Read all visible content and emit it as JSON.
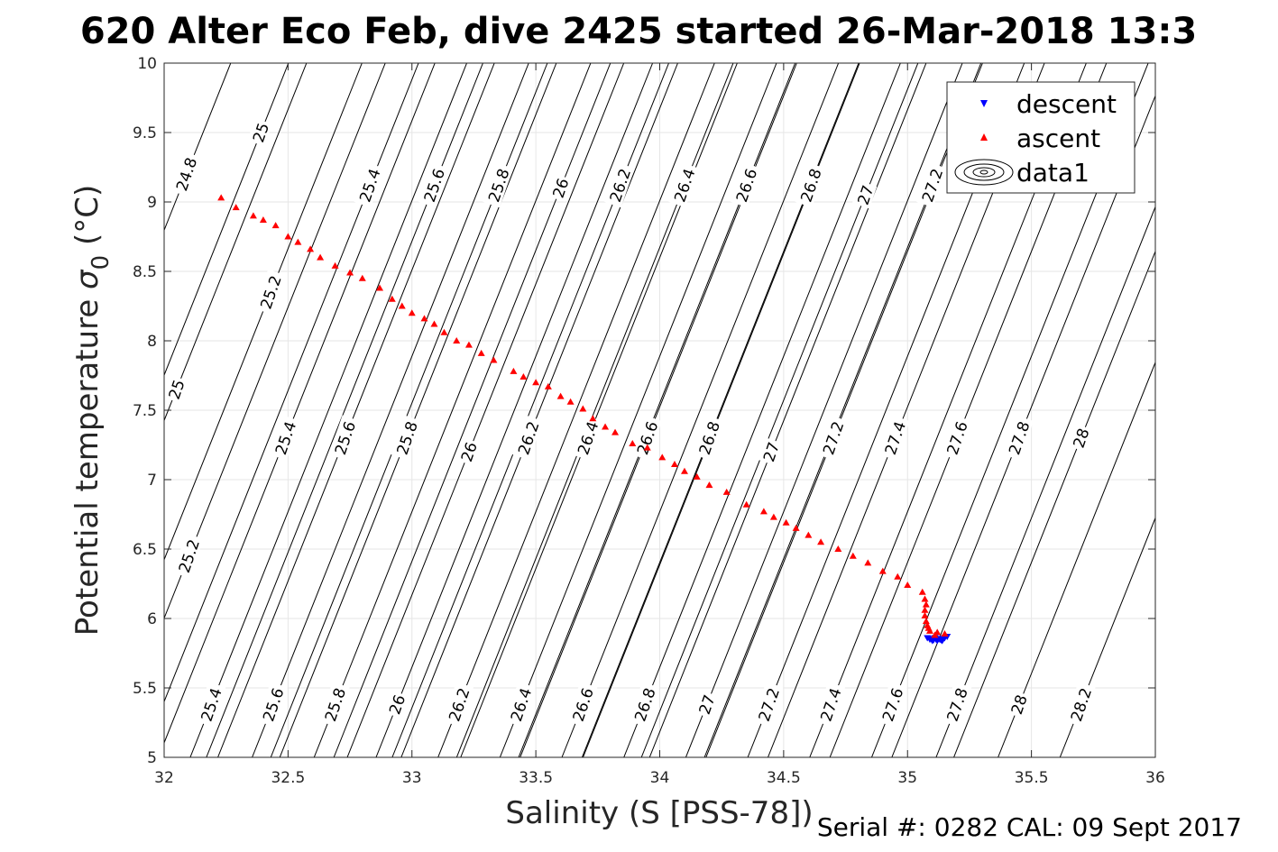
{
  "chart_data": {
    "type": "scatter",
    "title": "620 Alter Eco Feb, dive 2425 started 26-Mar-2018 13:3",
    "xlabel": "Salinity (S [PSS-78])",
    "ylabel_prefix": "Potential temperature ",
    "ylabel_sigma": "σ",
    "ylabel_sub": "0",
    "ylabel_suffix": " (°C)",
    "xlim": [
      32,
      36
    ],
    "ylim": [
      5,
      10
    ],
    "x_ticks": [
      32,
      32.5,
      33,
      33.5,
      34,
      34.5,
      35,
      35.5,
      36
    ],
    "y_ticks": [
      5,
      5.5,
      6,
      6.5,
      7,
      7.5,
      8,
      8.5,
      9,
      9.5,
      10
    ],
    "x_tick_labels": [
      "32",
      "32.5",
      "33",
      "33.5",
      "34",
      "34.5",
      "35",
      "35.5",
      "36"
    ],
    "y_tick_labels": [
      "5",
      "5.5",
      "6",
      "6.5",
      "7",
      "7.5",
      "8",
      "8.5",
      "9",
      "9.5",
      "10"
    ],
    "grid": true,
    "legend_position": "top-right",
    "legend": [
      {
        "label": "descent",
        "color": "#0000ff",
        "marker": "triangle-down"
      },
      {
        "label": "ascent",
        "color": "#ff0000",
        "marker": "triangle-up"
      },
      {
        "label": "data1",
        "color": "#000000",
        "marker": "contour"
      }
    ],
    "footer": "Serial #: 0282  CAL: 09 Sept 2017",
    "series": [
      {
        "name": "descent",
        "color": "#0000ff",
        "marker": "triangle-down",
        "points": [
          [
            35.08,
            5.86
          ],
          [
            35.09,
            5.85
          ],
          [
            35.1,
            5.84
          ],
          [
            35.11,
            5.86
          ],
          [
            35.12,
            5.84
          ],
          [
            35.13,
            5.85
          ],
          [
            35.14,
            5.84
          ],
          [
            35.15,
            5.86
          ],
          [
            35.16,
            5.87
          ],
          [
            35.095,
            5.855
          ],
          [
            35.105,
            5.845
          ],
          [
            35.115,
            5.85
          ],
          [
            35.125,
            5.855
          ],
          [
            35.135,
            5.845
          ],
          [
            35.145,
            5.855
          ]
        ]
      },
      {
        "name": "ascent",
        "color": "#ff0000",
        "marker": "triangle-up",
        "points": [
          [
            32.23,
            9.03
          ],
          [
            32.29,
            8.96
          ],
          [
            32.36,
            8.9
          ],
          [
            32.4,
            8.87
          ],
          [
            32.45,
            8.83
          ],
          [
            32.5,
            8.75
          ],
          [
            32.54,
            8.71
          ],
          [
            32.59,
            8.66
          ],
          [
            32.63,
            8.6
          ],
          [
            32.69,
            8.54
          ],
          [
            32.75,
            8.49
          ],
          [
            32.8,
            8.45
          ],
          [
            32.87,
            8.38
          ],
          [
            32.92,
            8.3
          ],
          [
            32.96,
            8.25
          ],
          [
            33.0,
            8.2
          ],
          [
            33.05,
            8.16
          ],
          [
            33.09,
            8.12
          ],
          [
            33.13,
            8.06
          ],
          [
            33.18,
            8.0
          ],
          [
            33.23,
            7.97
          ],
          [
            33.28,
            7.91
          ],
          [
            33.33,
            7.86
          ],
          [
            33.41,
            7.78
          ],
          [
            33.45,
            7.74
          ],
          [
            33.5,
            7.7
          ],
          [
            33.55,
            7.67
          ],
          [
            33.6,
            7.6
          ],
          [
            33.64,
            7.56
          ],
          [
            33.69,
            7.51
          ],
          [
            33.73,
            7.44
          ],
          [
            33.78,
            7.38
          ],
          [
            33.82,
            7.34
          ],
          [
            33.89,
            7.26
          ],
          [
            33.95,
            7.23
          ],
          [
            34.01,
            7.16
          ],
          [
            34.06,
            7.11
          ],
          [
            34.1,
            7.06
          ],
          [
            34.15,
            7.02
          ],
          [
            34.2,
            6.96
          ],
          [
            34.27,
            6.91
          ],
          [
            34.35,
            6.82
          ],
          [
            34.42,
            6.77
          ],
          [
            34.46,
            6.73
          ],
          [
            34.51,
            6.69
          ],
          [
            34.55,
            6.65
          ],
          [
            34.6,
            6.6
          ],
          [
            34.65,
            6.55
          ],
          [
            34.72,
            6.5
          ],
          [
            34.78,
            6.45
          ],
          [
            34.84,
            6.4
          ],
          [
            34.9,
            6.34
          ],
          [
            34.96,
            6.3
          ],
          [
            35.0,
            6.24
          ],
          [
            35.06,
            6.19
          ],
          [
            35.07,
            6.14
          ],
          [
            35.075,
            6.1
          ],
          [
            35.07,
            6.06
          ],
          [
            35.07,
            6.02
          ],
          [
            35.075,
            5.98
          ],
          [
            35.08,
            5.95
          ],
          [
            35.085,
            5.93
          ],
          [
            35.09,
            5.91
          ],
          [
            35.12,
            5.9
          ],
          [
            35.15,
            5.89
          ],
          [
            35.11,
            5.88
          ]
        ]
      }
    ],
    "contours": [
      {
        "level": "24.8",
        "labels": [
          [
            32.09,
            9.2
          ]
        ]
      },
      {
        "level": "25",
        "labels": [
          [
            32.39,
            9.5
          ],
          [
            32.05,
            7.65
          ]
        ]
      },
      {
        "level": "25.2",
        "labels": [
          [
            32.43,
            8.35
          ],
          [
            32.1,
            6.45
          ]
        ]
      },
      {
        "level": "25.4",
        "labels": [
          [
            32.83,
            9.12
          ],
          [
            32.49,
            7.3
          ],
          [
            32.19,
            5.38
          ]
        ]
      },
      {
        "level": "25.6",
        "labels": [
          [
            33.09,
            9.12
          ],
          [
            32.73,
            7.3
          ],
          [
            32.44,
            5.38
          ]
        ]
      },
      {
        "level": "25.8",
        "labels": [
          [
            33.35,
            9.12
          ],
          [
            32.98,
            7.3
          ],
          [
            32.69,
            5.38
          ]
        ]
      },
      {
        "level": "26",
        "labels": [
          [
            33.6,
            9.1
          ],
          [
            33.23,
            7.2
          ],
          [
            32.94,
            5.38
          ]
        ]
      },
      {
        "level": "26.2",
        "labels": [
          [
            33.84,
            9.12
          ],
          [
            33.47,
            7.3
          ],
          [
            33.19,
            5.38
          ]
        ]
      },
      {
        "level": "26.4",
        "labels": [
          [
            34.1,
            9.12
          ],
          [
            33.71,
            7.3
          ],
          [
            33.44,
            5.38
          ]
        ]
      },
      {
        "level": "26.6",
        "labels": [
          [
            34.35,
            9.12
          ],
          [
            33.95,
            7.3
          ],
          [
            33.69,
            5.38
          ]
        ]
      },
      {
        "level": "26.8",
        "labels": [
          [
            34.61,
            9.12
          ],
          [
            34.2,
            7.3
          ],
          [
            33.94,
            5.38
          ]
        ]
      },
      {
        "level": "27",
        "labels": [
          [
            34.83,
            9.05
          ],
          [
            34.45,
            7.2
          ],
          [
            34.19,
            5.38
          ]
        ]
      },
      {
        "level": "27.2",
        "labels": [
          [
            35.1,
            9.12
          ],
          [
            34.7,
            7.3
          ],
          [
            34.44,
            5.38
          ]
        ]
      },
      {
        "level": "27.4",
        "labels": [
          [
            34.95,
            7.3
          ],
          [
            34.69,
            5.38
          ]
        ]
      },
      {
        "level": "27.6",
        "labels": [
          [
            35.2,
            7.3
          ],
          [
            34.94,
            5.38
          ]
        ]
      },
      {
        "level": "27.8",
        "labels": [
          [
            35.45,
            7.3
          ],
          [
            35.2,
            5.38
          ]
        ]
      },
      {
        "level": "28",
        "labels": [
          [
            35.7,
            7.3
          ],
          [
            35.45,
            5.38
          ]
        ]
      },
      {
        "level": "28.2",
        "labels": [
          [
            35.7,
            5.38
          ]
        ]
      }
    ]
  }
}
